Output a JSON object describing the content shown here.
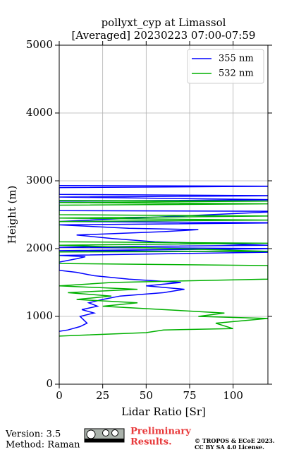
{
  "chart_data": {
    "type": "line",
    "title": "pollyxt_cyp at Limassol",
    "subtitle": "[Averaged] 20230223 07:00-07:59",
    "xlabel": "Lidar Ratio [Sr]",
    "ylabel": "Height (m)",
    "xlim": [
      0,
      120
    ],
    "xticks": [
      0,
      25,
      50,
      75,
      100
    ],
    "ylim": [
      0,
      5000
    ],
    "yticks": [
      0,
      1000,
      2000,
      3000,
      4000,
      5000
    ],
    "grid": true,
    "legend": "upper right",
    "series": [
      {
        "name": "355 nm",
        "color": "#0000ff",
        "y": [
          780,
          800,
          850,
          900,
          950,
          1000,
          1050,
          1100,
          1150,
          1200,
          1250,
          1300,
          1350,
          1400,
          1450,
          1500,
          1550,
          1600,
          1650,
          1680,
          1800,
          1850,
          1880,
          1900,
          1950,
          1970,
          2000,
          2020,
          2050,
          2100,
          2150,
          2200,
          2250,
          2280,
          2300,
          2350,
          2380,
          2400,
          2550,
          2560,
          2700,
          2720,
          2760,
          2780,
          2800,
          2900,
          2920,
          2930
        ],
        "values": [
          0,
          5,
          12,
          16,
          14,
          12,
          20,
          13,
          22,
          17,
          25,
          35,
          60,
          72,
          50,
          70,
          40,
          20,
          10,
          0,
          0,
          10,
          15,
          0,
          130,
          0,
          130,
          0,
          120,
          55,
          30,
          10,
          60,
          80,
          40,
          0,
          130,
          0,
          130,
          0,
          0,
          130,
          0,
          130,
          0,
          0,
          130,
          0
        ]
      },
      {
        "name": "532 nm",
        "color": "#00b000",
        "y": [
          710,
          760,
          800,
          820,
          900,
          970,
          1000,
          1050,
          1100,
          1150,
          1200,
          1250,
          1300,
          1350,
          1400,
          1450,
          1500,
          1550,
          1600,
          1750,
          1780,
          1950,
          1960,
          2050,
          2080,
          2100,
          2400,
          2420,
          2450,
          2480,
          2500,
          2640,
          2660,
          2680,
          2700,
          2710
        ],
        "values": [
          0,
          50,
          60,
          100,
          90,
          120,
          80,
          95,
          60,
          25,
          45,
          10,
          30,
          5,
          45,
          0,
          30,
          120,
          120,
          120,
          0,
          0,
          120,
          0,
          120,
          0,
          0,
          120,
          0,
          120,
          0,
          0,
          120,
          0,
          120,
          0
        ]
      }
    ]
  },
  "footer": {
    "version": "Version: 3.5",
    "method": "Method: Raman",
    "status": [
      "Preliminary",
      "Results."
    ],
    "copyright": [
      "© TROPOS & ECoE 2023.",
      "CC BY SA 4.0 License."
    ]
  }
}
